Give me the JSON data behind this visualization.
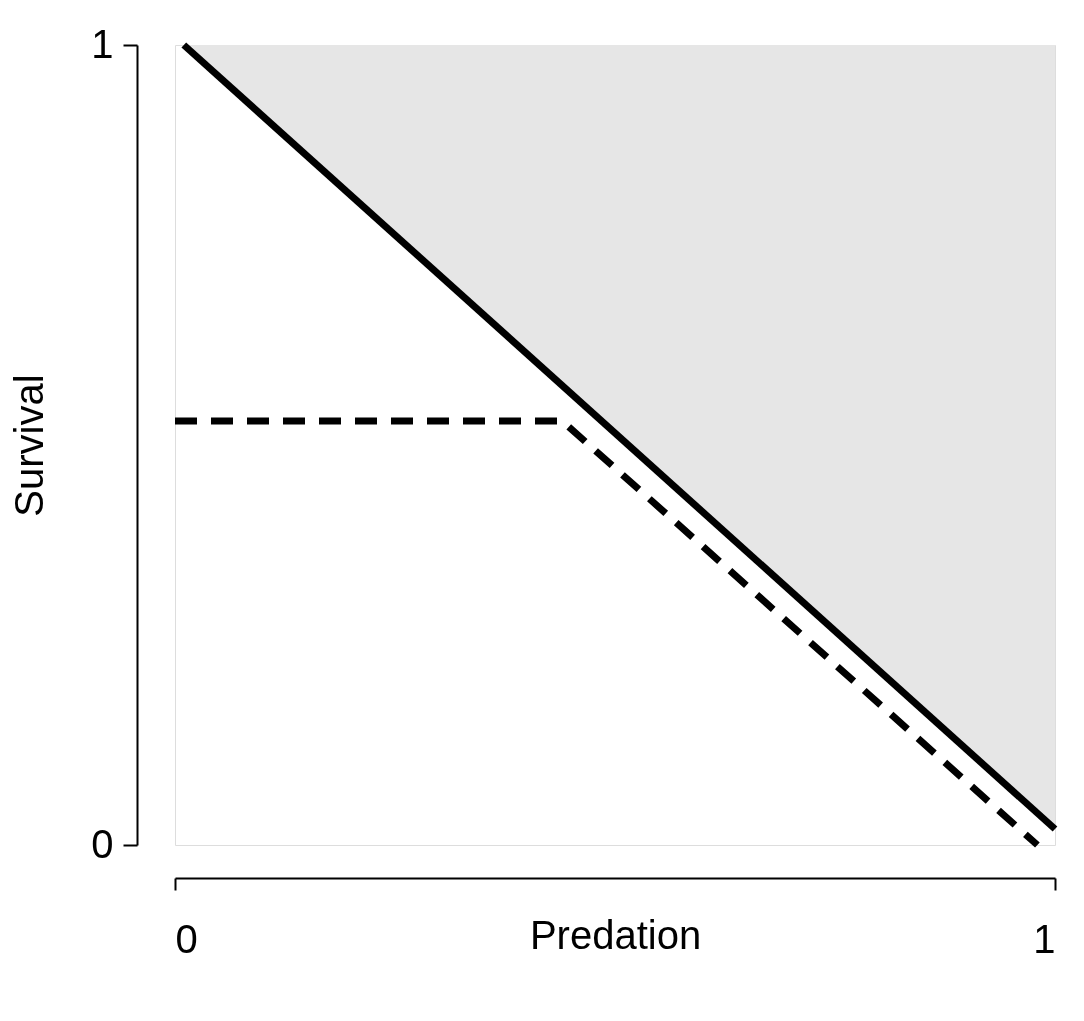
{
  "chart_data": {
    "type": "line",
    "xlabel": "Predation",
    "ylabel": "Survival",
    "xlim": [
      0,
      1
    ],
    "ylim": [
      0,
      1
    ],
    "xticks": [
      0,
      1
    ],
    "yticks": [
      0,
      1
    ],
    "grid": false,
    "series": [
      {
        "color": "#000000",
        "line_style": "solid",
        "x": [
          0.01,
          1
        ],
        "values": [
          1,
          0.02
        ],
        "lower": [
          1,
          0.02
        ],
        "upper": [
          1,
          1
        ]
      },
      {
        "color": "#000000",
        "line_style": "dashed",
        "x": [
          0,
          0.44,
          0.98
        ],
        "values": [
          0.53,
          0.53,
          0
        ]
      }
    ]
  }
}
